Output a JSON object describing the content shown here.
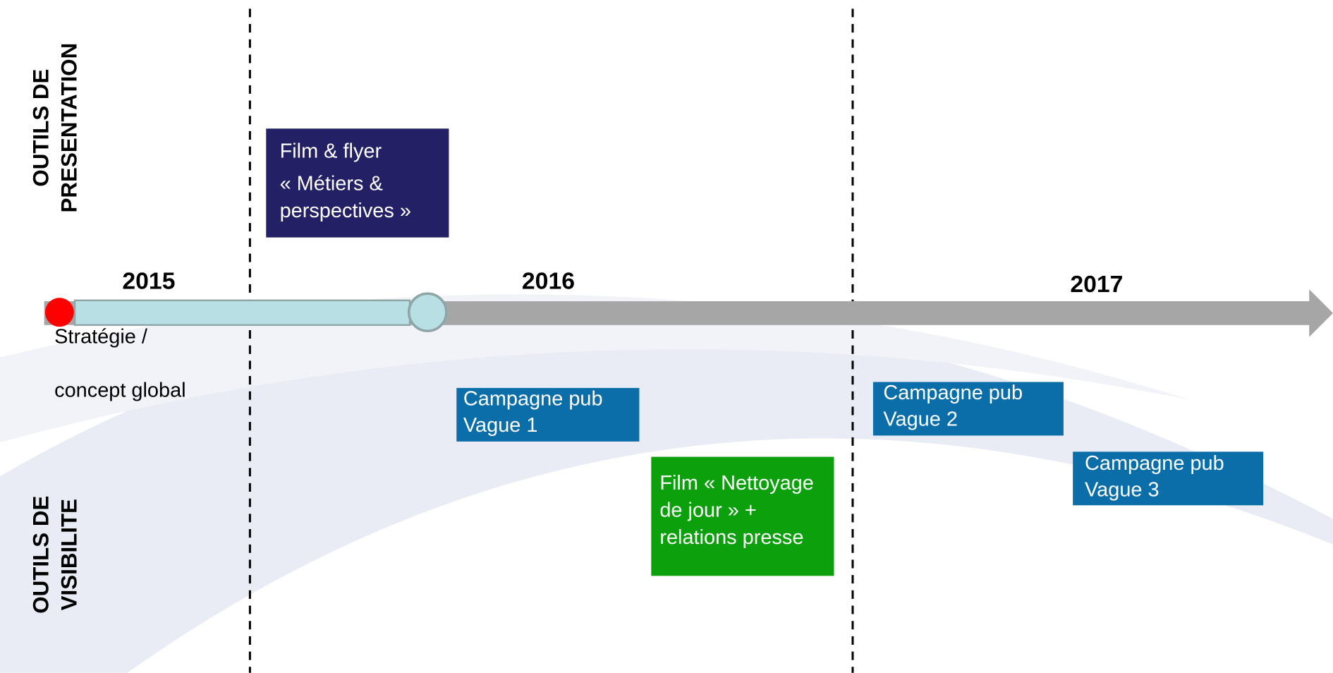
{
  "side_labels": {
    "top": [
      "OUTILS DE",
      "PRESENTATION"
    ],
    "bottom": [
      "OUTILS DE",
      "VISIBILITE"
    ]
  },
  "years": [
    "2015",
    "2016",
    "2017"
  ],
  "milestone": [
    "Stratégie /",
    "concept global"
  ],
  "boxes": [
    {
      "lines": [
        "Film & flyer",
        "« Métiers &",
        "perspectives »"
      ]
    },
    {
      "lines": [
        "Campagne pub",
        "Vague 1"
      ]
    },
    {
      "lines": [
        "Film « Nettoyage",
        "de jour » +",
        "relations presse"
      ]
    },
    {
      "lines": [
        "Campagne pub",
        "Vague 2"
      ]
    },
    {
      "lines": [
        "Campagne pub",
        "Vague 3"
      ]
    }
  ]
}
